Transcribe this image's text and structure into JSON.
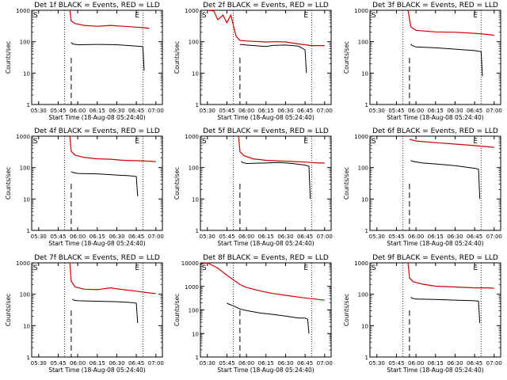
{
  "chart_data": [
    {
      "type": "line",
      "title": "Det 1f BLACK = Events, RED = LLD",
      "xlabel": "Start Time (18-Aug-08 05:24:40)",
      "ylabel": "Counts/sec",
      "y_scale": "log",
      "ylim": [
        1,
        1000
      ],
      "xlim": [
        "05:24:40",
        "07:05:00"
      ],
      "x_ticks": [
        "05:30",
        "05:45",
        "06:00",
        "06:15",
        "06:30",
        "06:45",
        "07:00"
      ],
      "y_ticks": [
        "1",
        "10",
        "100",
        "1000"
      ],
      "marker_left": "S",
      "marker_right": "E",
      "series": [
        {
          "color": "#cc0000",
          "x": [
            "05:54",
            "05:55",
            "05:58",
            "06:05",
            "06:15",
            "06:25",
            "06:35",
            "06:45",
            "06:50",
            "06:55"
          ],
          "y": [
            1000,
            460,
            380,
            330,
            310,
            330,
            310,
            290,
            280,
            265
          ]
        },
        {
          "color": "#000000",
          "x": [
            "05:55",
            "05:56",
            "06:00",
            "06:15",
            "06:30",
            "06:40",
            "06:45",
            "06:50",
            "06:51"
          ],
          "y": [
            95,
            85,
            80,
            82,
            80,
            75,
            72,
            70,
            12
          ]
        }
      ]
    },
    {
      "type": "line",
      "title": "Det 2f BLACK = Events, RED = LLD",
      "xlabel": "Start Time (18-Aug-08 05:24:40)",
      "ylabel": "Counts/sec",
      "y_scale": "log",
      "ylim": [
        1,
        1000
      ],
      "xlim": [
        "05:24:40",
        "07:05:00"
      ],
      "x_ticks": [
        "05:30",
        "05:45",
        "06:00",
        "06:15",
        "06:30",
        "06:45",
        "07:00"
      ],
      "y_ticks": [
        "1",
        "10",
        "100",
        "1000"
      ],
      "marker_left": "S",
      "marker_right": "E",
      "series": [
        {
          "color": "#cc0000",
          "x": [
            "05:30",
            "05:35",
            "05:38",
            "05:42",
            "05:45",
            "05:48",
            "05:52",
            "05:55",
            "06:00",
            "06:15",
            "06:25",
            "06:30",
            "06:40",
            "06:45",
            "06:50",
            "06:55",
            "07:00"
          ],
          "y": [
            1000,
            950,
            500,
            700,
            400,
            700,
            150,
            110,
            105,
            98,
            100,
            98,
            85,
            80,
            75,
            75,
            75
          ]
        },
        {
          "color": "#000000",
          "x": [
            "05:55",
            "05:56",
            "06:00",
            "06:15",
            "06:20",
            "06:30",
            "06:40",
            "06:45",
            "06:46"
          ],
          "y": [
            80,
            82,
            78,
            70,
            76,
            78,
            72,
            55,
            10
          ]
        }
      ]
    },
    {
      "type": "line",
      "title": "Det 3f BLACK = Events, RED = LLD",
      "xlabel": "Start Time (18-Aug-08 05:24:40)",
      "ylabel": "Counts/sec",
      "y_scale": "log",
      "ylim": [
        1,
        1000
      ],
      "xlim": [
        "05:24:40",
        "07:05:00"
      ],
      "x_ticks": [
        "05:30",
        "05:45",
        "06:00",
        "06:15",
        "06:30",
        "06:45",
        "07:00"
      ],
      "y_ticks": [
        "1",
        "10",
        "100",
        "1000"
      ],
      "marker_left": "S",
      "marker_right": "E",
      "series": [
        {
          "color": "#cc0000",
          "x": [
            "05:54",
            "05:56",
            "06:00",
            "06:15",
            "06:30",
            "06:45",
            "06:55",
            "07:00"
          ],
          "y": [
            1000,
            300,
            230,
            205,
            200,
            185,
            170,
            160
          ]
        },
        {
          "color": "#000000",
          "x": [
            "05:56",
            "05:57",
            "06:00",
            "06:15",
            "06:30",
            "06:45",
            "06:50",
            "06:51"
          ],
          "y": [
            85,
            75,
            68,
            64,
            58,
            52,
            48,
            8
          ]
        }
      ]
    },
    {
      "type": "line",
      "title": "Det 4f BLACK = Events, RED = LLD",
      "xlabel": "Start Time (18-Aug-08 05:24:40)",
      "ylabel": "Counts/sec",
      "y_scale": "log",
      "ylim": [
        1,
        1000
      ],
      "xlim": [
        "05:24:40",
        "07:05:00"
      ],
      "x_ticks": [
        "05:30",
        "05:45",
        "06:00",
        "06:15",
        "06:30",
        "06:45",
        "07:00"
      ],
      "y_ticks": [
        "1",
        "10",
        "100",
        "1000"
      ],
      "marker_left": "S",
      "marker_right": "E",
      "series": [
        {
          "color": "#cc0000",
          "x": [
            "05:54",
            "05:55",
            "05:58",
            "06:05",
            "06:15",
            "06:25",
            "06:35",
            "06:45",
            "06:55",
            "07:00"
          ],
          "y": [
            1000,
            330,
            250,
            210,
            190,
            185,
            170,
            165,
            160,
            155
          ]
        },
        {
          "color": "#000000",
          "x": [
            "05:55",
            "05:56",
            "06:00",
            "06:15",
            "06:30",
            "06:40",
            "06:45",
            "06:46"
          ],
          "y": [
            75,
            70,
            65,
            63,
            58,
            55,
            52,
            12
          ]
        }
      ]
    },
    {
      "type": "line",
      "title": "Det 5f BLACK = Events, RED = LLD",
      "xlabel": "Start Time (18-Aug-08 05:24:40)",
      "ylabel": "Counts/sec",
      "y_scale": "log",
      "ylim": [
        1,
        1000
      ],
      "xlim": [
        "05:24:40",
        "07:05:00"
      ],
      "x_ticks": [
        "05:30",
        "05:45",
        "06:00",
        "06:15",
        "06:30",
        "06:45",
        "07:00"
      ],
      "y_ticks": [
        "1",
        "10",
        "100",
        "1000"
      ],
      "marker_left": "S",
      "marker_right": "E",
      "series": [
        {
          "color": "#cc0000",
          "x": [
            "05:54",
            "05:55",
            "05:58",
            "06:05",
            "06:15",
            "06:30",
            "06:45",
            "06:55",
            "07:00"
          ],
          "y": [
            1000,
            320,
            240,
            190,
            170,
            160,
            150,
            140,
            140
          ]
        },
        {
          "color": "#000000",
          "x": [
            "05:56",
            "05:57",
            "06:00",
            "06:15",
            "06:25",
            "06:35",
            "06:45",
            "06:48",
            "06:49"
          ],
          "y": [
            160,
            145,
            135,
            140,
            145,
            135,
            120,
            110,
            10
          ]
        }
      ]
    },
    {
      "type": "line",
      "title": "Det 6f BLACK = Events, RED = LLD",
      "xlabel": "Start Time (18-Aug-08 05:24:40)",
      "ylabel": "Counts/sec",
      "y_scale": "log",
      "ylim": [
        1,
        1000
      ],
      "xlim": [
        "05:24:40",
        "07:05:00"
      ],
      "x_ticks": [
        "05:30",
        "05:45",
        "06:00",
        "06:15",
        "06:30",
        "06:45",
        "07:00"
      ],
      "y_ticks": [
        "1",
        "10",
        "100",
        "1000"
      ],
      "marker_left": "S",
      "marker_right": "E",
      "series": [
        {
          "color": "#cc0000",
          "x": [
            "05:55",
            "06:00",
            "06:15",
            "06:30",
            "06:45",
            "07:00"
          ],
          "y": [
            800,
            700,
            620,
            560,
            500,
            440
          ]
        },
        {
          "color": "#000000",
          "x": [
            "05:56",
            "05:57",
            "06:05",
            "06:15",
            "06:30",
            "06:45",
            "06:48",
            "06:49"
          ],
          "y": [
            170,
            160,
            140,
            130,
            115,
            95,
            90,
            10
          ]
        }
      ]
    },
    {
      "type": "line",
      "title": "Det 7f BLACK = Events, RED = LLD",
      "xlabel": "Start Time (18-Aug-08 05:24:40)",
      "ylabel": "Counts/sec",
      "y_scale": "log",
      "ylim": [
        1,
        1000
      ],
      "xlim": [
        "05:24:40",
        "07:05:00"
      ],
      "x_ticks": [
        "05:30",
        "05:45",
        "06:00",
        "06:15",
        "06:30",
        "06:45",
        "07:00"
      ],
      "y_ticks": [
        "1",
        "10",
        "100",
        "1000"
      ],
      "marker_left": "S",
      "marker_right": "E",
      "series": [
        {
          "color": "#cc0000",
          "x": [
            "05:54",
            "05:55",
            "05:58",
            "06:05",
            "06:15",
            "06:25",
            "06:35",
            "06:45",
            "06:55",
            "07:00"
          ],
          "y": [
            1000,
            260,
            170,
            145,
            140,
            160,
            140,
            125,
            110,
            105
          ]
        },
        {
          "color": "#000000",
          "x": [
            "05:56",
            "05:57",
            "06:00",
            "06:15",
            "06:30",
            "06:40",
            "06:45",
            "06:46"
          ],
          "y": [
            70,
            65,
            62,
            60,
            58,
            55,
            52,
            12
          ]
        }
      ]
    },
    {
      "type": "line",
      "title": "Det 8f BLACK = Events, RED = LLD",
      "xlabel": "Start Time (18-Aug-08 05:24:40)",
      "ylabel": "Counts/sec",
      "y_scale": "log",
      "ylim": [
        1,
        10000
      ],
      "xlim": [
        "05:24:40",
        "07:05:00"
      ],
      "x_ticks": [
        "05:30",
        "05:45",
        "06:00",
        "06:15",
        "06:30",
        "06:45",
        "07:00"
      ],
      "y_ticks": [
        "1",
        "10",
        "100",
        "1000",
        "10000"
      ],
      "marker_left": "S",
      "marker_right": "E",
      "series": [
        {
          "color": "#cc0000",
          "x": [
            "05:25",
            "05:30",
            "05:38",
            "05:45",
            "05:50",
            "05:55",
            "06:00",
            "06:10",
            "06:20",
            "06:30",
            "06:40",
            "06:50",
            "07:00"
          ],
          "y": [
            9000,
            10000,
            6000,
            3000,
            1900,
            1200,
            900,
            650,
            500,
            420,
            350,
            300,
            260
          ]
        },
        {
          "color": "#000000",
          "x": [
            "05:45",
            "05:46",
            "05:50",
            "05:55",
            "06:00",
            "06:10",
            "06:20",
            "06:30",
            "06:40",
            "06:45",
            "06:47",
            "06:48"
          ],
          "y": [
            200,
            180,
            150,
            110,
            95,
            75,
            65,
            55,
            45,
            45,
            40,
            10
          ]
        }
      ]
    },
    {
      "type": "line",
      "title": "Det 9f BLACK = Events, RED = LLD",
      "xlabel": "Start Time (18-Aug-08 05:24:40)",
      "ylabel": "Counts/sec",
      "y_scale": "log",
      "ylim": [
        1,
        1000
      ],
      "xlim": [
        "05:24:40",
        "07:05:00"
      ],
      "x_ticks": [
        "05:30",
        "05:45",
        "06:00",
        "06:15",
        "06:30",
        "06:45",
        "07:00"
      ],
      "y_ticks": [
        "1",
        "10",
        "100",
        "1000"
      ],
      "marker_left": "S",
      "marker_right": "E",
      "series": [
        {
          "color": "#cc0000",
          "x": [
            "05:54",
            "05:55",
            "05:58",
            "06:05",
            "06:15",
            "06:30",
            "06:45",
            "06:55",
            "07:00"
          ],
          "y": [
            1000,
            330,
            250,
            210,
            180,
            170,
            160,
            160,
            155
          ]
        },
        {
          "color": "#000000",
          "x": [
            "05:56",
            "05:57",
            "06:00",
            "06:15",
            "06:30",
            "06:45",
            "06:48",
            "06:49"
          ],
          "y": [
            80,
            75,
            70,
            68,
            65,
            62,
            60,
            12
          ]
        }
      ]
    }
  ]
}
